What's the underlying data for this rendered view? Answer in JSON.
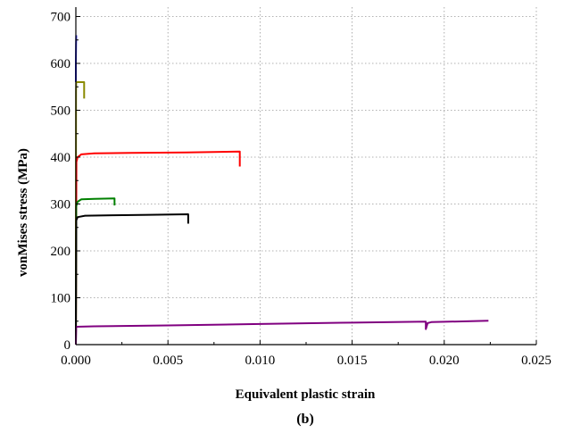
{
  "chart_data": {
    "type": "line",
    "xlabel": "Equivalent plastic strain",
    "ylabel": "vonMises stress (MPa)",
    "panel_label": "(b)",
    "xlim": [
      0,
      0.025
    ],
    "ylim": [
      0,
      720
    ],
    "x_ticks": [
      0,
      0.005,
      0.01,
      0.015,
      0.02,
      0.025
    ],
    "x_tick_labels": [
      "0.000",
      "0.005",
      "0.010",
      "0.015",
      "0.020",
      "0.025"
    ],
    "y_ticks": [
      0,
      100,
      200,
      300,
      400,
      500,
      600,
      700
    ],
    "y_tick_labels": [
      "0",
      "100",
      "200",
      "300",
      "400",
      "500",
      "600",
      "700"
    ],
    "grid": true,
    "series": [
      {
        "color": "#1f1fd6",
        "points": [
          [
            0,
            560
          ],
          [
            0,
            600
          ],
          [
            1e-05,
            640
          ],
          [
            2e-05,
            660
          ]
        ]
      },
      {
        "color": "#8a8a00",
        "points": [
          [
            0,
            0
          ],
          [
            1e-05,
            540
          ],
          [
            2e-05,
            560
          ],
          [
            0.00045,
            560
          ],
          [
            0.00045,
            525
          ]
        ]
      },
      {
        "color": "#ff0000",
        "points": [
          [
            0,
            0
          ],
          [
            3e-05,
            390
          ],
          [
            0.0001,
            400
          ],
          [
            0.0003,
            406
          ],
          [
            0.001,
            408
          ],
          [
            0.003,
            409
          ],
          [
            0.006,
            410
          ],
          [
            0.0089,
            412
          ],
          [
            0.0089,
            380
          ]
        ]
      },
      {
        "color": "#008000",
        "points": [
          [
            0,
            0
          ],
          [
            2e-05,
            295
          ],
          [
            0.0001,
            305
          ],
          [
            0.0003,
            310
          ],
          [
            0.001,
            311
          ],
          [
            0.0021,
            312
          ],
          [
            0.0021,
            297
          ]
        ]
      },
      {
        "color": "#000000",
        "points": [
          [
            0,
            0
          ],
          [
            2e-05,
            265
          ],
          [
            0.0001,
            272
          ],
          [
            0.0005,
            275
          ],
          [
            0.002,
            276
          ],
          [
            0.004,
            277
          ],
          [
            0.0061,
            278
          ],
          [
            0.0061,
            258
          ]
        ]
      },
      {
        "color": "#800080",
        "points": [
          [
            0,
            0
          ],
          [
            2e-05,
            38
          ],
          [
            0.001,
            39
          ],
          [
            0.005,
            41
          ],
          [
            0.01,
            44
          ],
          [
            0.015,
            47
          ],
          [
            0.019,
            49
          ],
          [
            0.019,
            33
          ],
          [
            0.0191,
            46
          ],
          [
            0.0193,
            48
          ],
          [
            0.0224,
            51
          ]
        ]
      }
    ]
  }
}
